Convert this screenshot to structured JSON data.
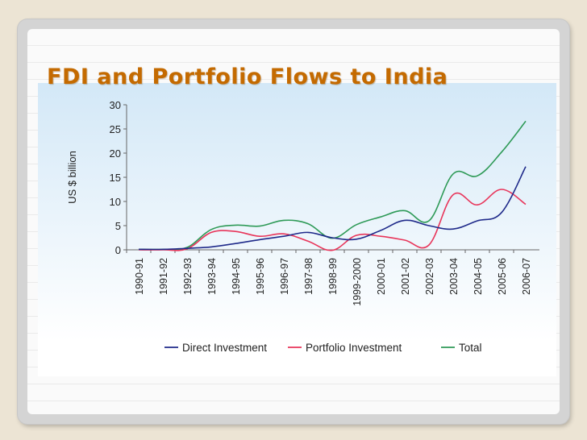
{
  "slide": {
    "title": "FDI and Portfolio Flows to India"
  },
  "colors": {
    "direct": "#1f2a8a",
    "portfolio": "#e8355a",
    "total": "#2e9a57",
    "title": "#c46a00"
  },
  "chart_data": {
    "type": "line",
    "title": "",
    "xlabel": "",
    "ylabel": "US $ billion",
    "ylim": [
      0,
      30
    ],
    "yticks": [
      0,
      5,
      10,
      15,
      20,
      25,
      30
    ],
    "categories": [
      "1990-91",
      "1991-92",
      "1992-93",
      "1993-94",
      "1994-95",
      "1995-96",
      "1996-97",
      "1997-98",
      "1998-99",
      "1999-2000",
      "2000-01",
      "2001-02",
      "2002-03",
      "2003-04",
      "2004-05",
      "2005-06",
      "2006-07"
    ],
    "series": [
      {
        "name": "Direct Investment",
        "color_key": "direct",
        "values": [
          0.1,
          0.1,
          0.3,
          0.6,
          1.3,
          2.1,
          2.8,
          3.6,
          2.5,
          2.2,
          4.0,
          6.1,
          5.0,
          4.3,
          6.0,
          7.7,
          17.2
        ]
      },
      {
        "name": "Portfolio Investment",
        "color_key": "portfolio",
        "values": [
          0.0,
          0.0,
          0.2,
          3.6,
          3.8,
          2.8,
          3.3,
          1.8,
          -0.1,
          3.0,
          2.8,
          2.0,
          1.0,
          11.4,
          9.3,
          12.5,
          9.4
        ]
      },
      {
        "name": "Total",
        "color_key": "total",
        "values": [
          0.1,
          0.1,
          0.5,
          4.2,
          5.1,
          4.9,
          6.1,
          5.4,
          2.4,
          5.2,
          6.8,
          8.1,
          6.0,
          15.7,
          15.3,
          20.2,
          26.6
        ]
      }
    ],
    "legend": "bottom",
    "grid": false
  }
}
